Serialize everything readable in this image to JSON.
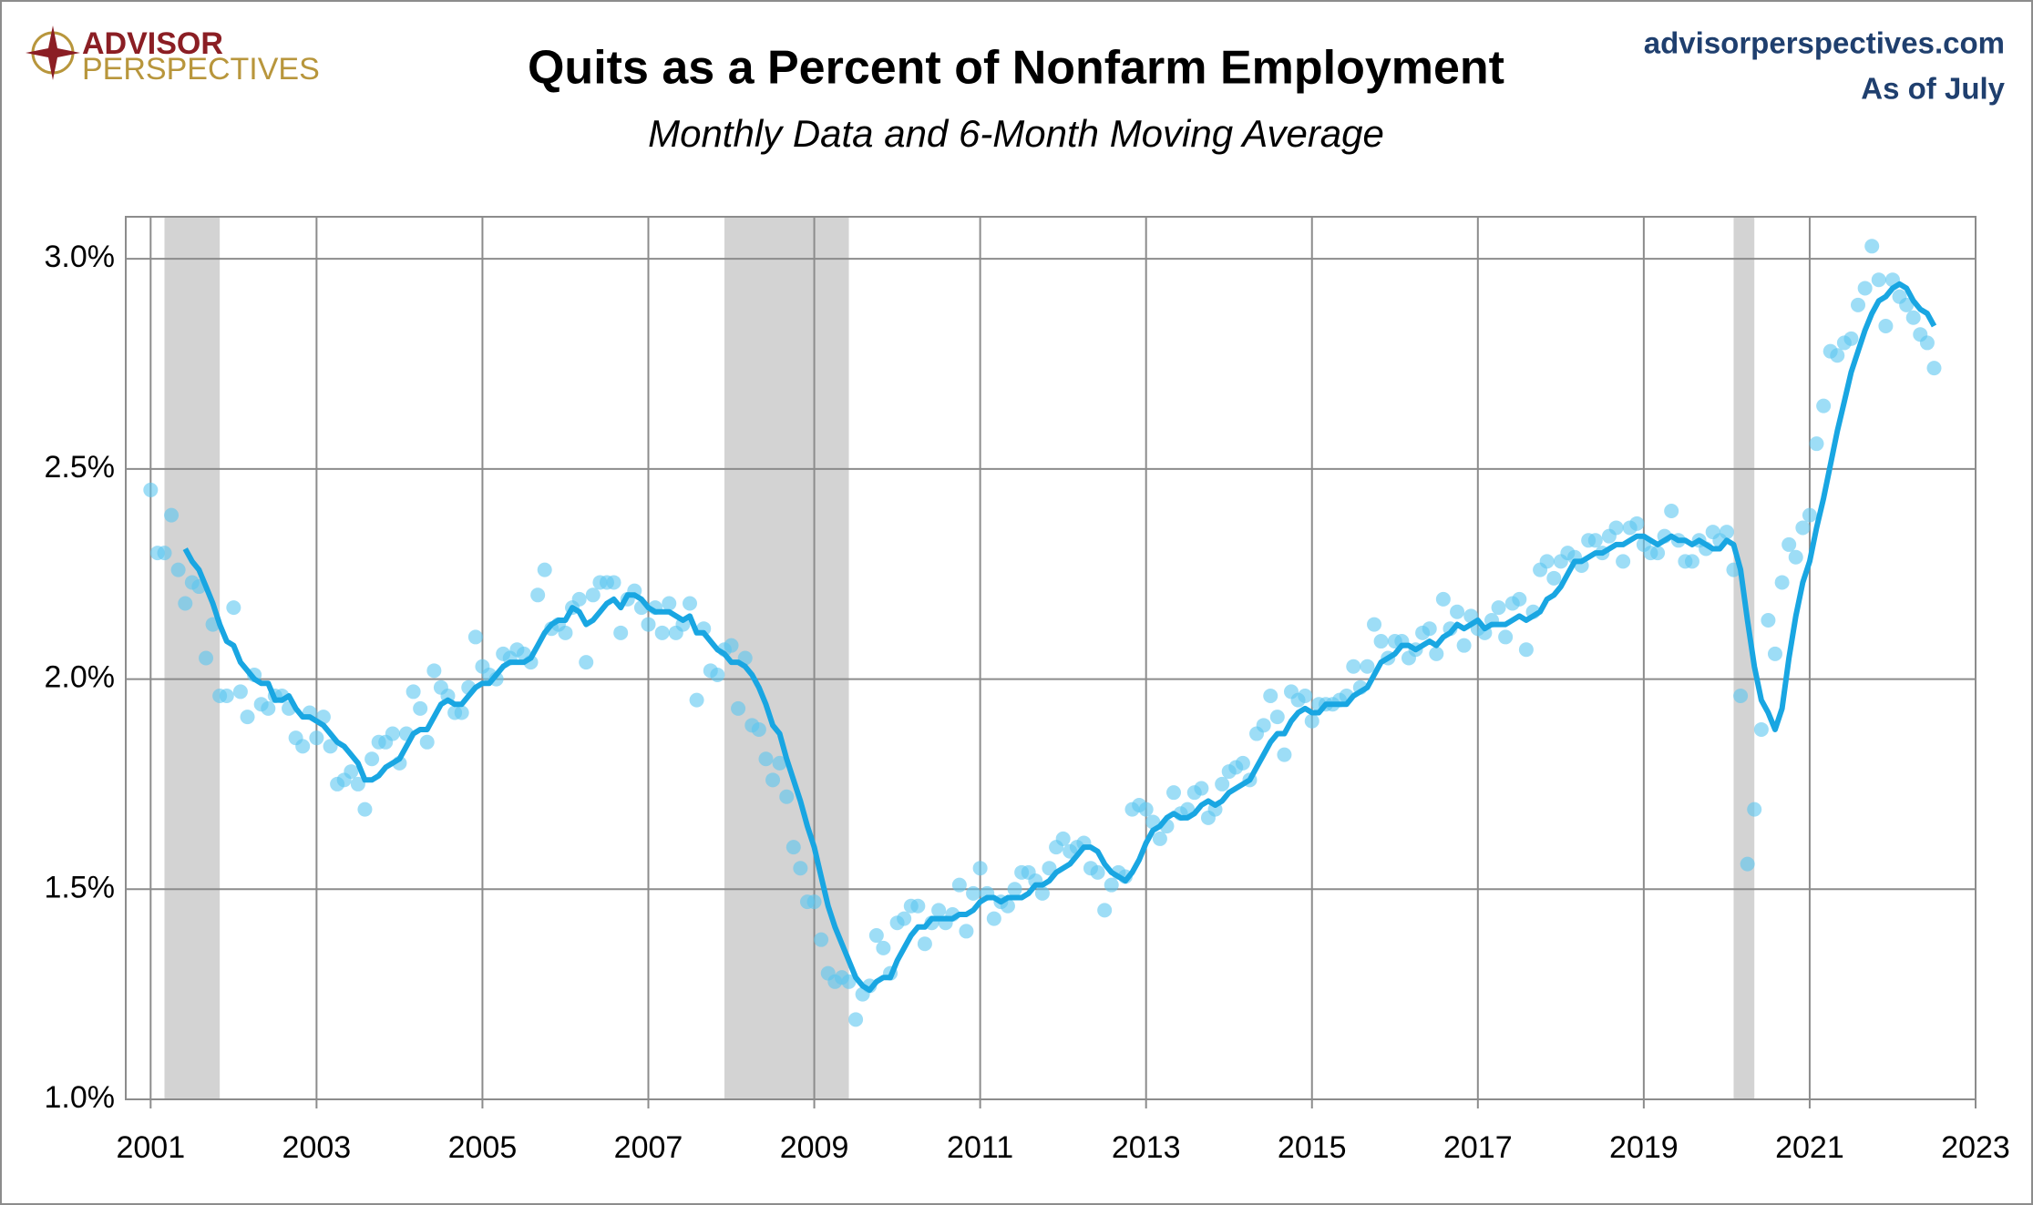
{
  "chart_data": {
    "type": "scatter",
    "title": "Quits as a Percent of Nonfarm Employment",
    "subtitle": "Monthly Data and 6-Month Moving Average",
    "logo_top": "ADVISOR",
    "logo_bottom": "PERSPECTIVES",
    "source": "advisorperspectives.com",
    "as_of": "As of July",
    "x": [
      2001,
      2001.083,
      2001.167,
      2001.25,
      2001.333,
      2001.417,
      2001.5,
      2001.583,
      2001.667,
      2001.75,
      2001.833,
      2001.917,
      2002,
      2002.083,
      2002.167,
      2002.25,
      2002.333,
      2002.417,
      2002.5,
      2002.583,
      2002.667,
      2002.75,
      2002.833,
      2002.917,
      2003,
      2003.083,
      2003.167,
      2003.25,
      2003.333,
      2003.417,
      2003.5,
      2003.583,
      2003.667,
      2003.75,
      2003.833,
      2003.917,
      2004,
      2004.083,
      2004.167,
      2004.25,
      2004.333,
      2004.417,
      2004.5,
      2004.583,
      2004.667,
      2004.75,
      2004.833,
      2004.917,
      2005,
      2005.083,
      2005.167,
      2005.25,
      2005.333,
      2005.417,
      2005.5,
      2005.583,
      2005.667,
      2005.75,
      2005.833,
      2005.917,
      2006,
      2006.083,
      2006.167,
      2006.25,
      2006.333,
      2006.417,
      2006.5,
      2006.583,
      2006.667,
      2006.75,
      2006.833,
      2006.917,
      2007,
      2007.083,
      2007.167,
      2007.25,
      2007.333,
      2007.417,
      2007.5,
      2007.583,
      2007.667,
      2007.75,
      2007.833,
      2007.917,
      2008,
      2008.083,
      2008.167,
      2008.25,
      2008.333,
      2008.417,
      2008.5,
      2008.583,
      2008.667,
      2008.75,
      2008.833,
      2008.917,
      2009,
      2009.083,
      2009.167,
      2009.25,
      2009.333,
      2009.417,
      2009.5,
      2009.583,
      2009.667,
      2009.75,
      2009.833,
      2009.917,
      2010,
      2010.083,
      2010.167,
      2010.25,
      2010.333,
      2010.417,
      2010.5,
      2010.583,
      2010.667,
      2010.75,
      2010.833,
      2010.917,
      2011,
      2011.083,
      2011.167,
      2011.25,
      2011.333,
      2011.417,
      2011.5,
      2011.583,
      2011.667,
      2011.75,
      2011.833,
      2011.917,
      2012,
      2012.083,
      2012.167,
      2012.25,
      2012.333,
      2012.417,
      2012.5,
      2012.583,
      2012.667,
      2012.75,
      2012.833,
      2012.917,
      2013,
      2013.083,
      2013.167,
      2013.25,
      2013.333,
      2013.417,
      2013.5,
      2013.583,
      2013.667,
      2013.75,
      2013.833,
      2013.917,
      2014,
      2014.083,
      2014.167,
      2014.25,
      2014.333,
      2014.417,
      2014.5,
      2014.583,
      2014.667,
      2014.75,
      2014.833,
      2014.917,
      2015,
      2015.083,
      2015.167,
      2015.25,
      2015.333,
      2015.417,
      2015.5,
      2015.583,
      2015.667,
      2015.75,
      2015.833,
      2015.917,
      2016,
      2016.083,
      2016.167,
      2016.25,
      2016.333,
      2016.417,
      2016.5,
      2016.583,
      2016.667,
      2016.75,
      2016.833,
      2016.917,
      2017,
      2017.083,
      2017.167,
      2017.25,
      2017.333,
      2017.417,
      2017.5,
      2017.583,
      2017.667,
      2017.75,
      2017.833,
      2017.917,
      2018,
      2018.083,
      2018.167,
      2018.25,
      2018.333,
      2018.417,
      2018.5,
      2018.583,
      2018.667,
      2018.75,
      2018.833,
      2018.917,
      2019,
      2019.083,
      2019.167,
      2019.25,
      2019.333,
      2019.417,
      2019.5,
      2019.583,
      2019.667,
      2019.75,
      2019.833,
      2019.917,
      2020,
      2020.083,
      2020.167,
      2020.25,
      2020.333,
      2020.417,
      2020.5,
      2020.583,
      2020.667,
      2020.75,
      2020.833,
      2020.917,
      2021,
      2021.083,
      2021.167,
      2021.25,
      2021.333,
      2021.417,
      2021.5,
      2021.583,
      2021.667,
      2021.75,
      2021.833,
      2021.917,
      2022,
      2022.083,
      2022.167,
      2022.25,
      2022.333,
      2022.417,
      2022.5
    ],
    "series": [
      {
        "type": "scatter",
        "color": "#5cc6f0",
        "values": [
          2.45,
          2.3,
          2.3,
          2.39,
          2.26,
          2.18,
          2.23,
          2.22,
          2.05,
          2.13,
          1.96,
          1.96,
          2.17,
          1.97,
          1.91,
          2.01,
          1.94,
          1.93,
          1.96,
          1.96,
          1.93,
          1.86,
          1.84,
          1.92,
          1.86,
          1.91,
          1.84,
          1.75,
          1.76,
          1.78,
          1.75,
          1.69,
          1.81,
          1.85,
          1.85,
          1.87,
          1.8,
          1.87,
          1.97,
          1.93,
          1.85,
          2.02,
          1.98,
          1.96,
          1.92,
          1.92,
          1.98,
          2.1,
          2.03,
          2.01,
          2.0,
          2.06,
          2.05,
          2.07,
          2.06,
          2.04,
          2.2,
          2.26,
          2.12,
          2.13,
          2.11,
          2.17,
          2.19,
          2.04,
          2.2,
          2.23,
          2.23,
          2.23,
          2.11,
          2.19,
          2.21,
          2.17,
          2.13,
          2.17,
          2.11,
          2.18,
          2.11,
          2.13,
          2.18,
          1.95,
          2.12,
          2.02,
          2.01,
          2.07,
          2.08,
          1.93,
          2.05,
          1.89,
          1.88,
          1.81,
          1.76,
          1.8,
          1.72,
          1.6,
          1.55,
          1.47,
          1.47,
          1.38,
          1.3,
          1.28,
          1.29,
          1.28,
          1.19,
          1.25,
          1.27,
          1.39,
          1.36,
          1.3,
          1.42,
          1.43,
          1.46,
          1.46,
          1.37,
          1.42,
          1.45,
          1.42,
          1.44,
          1.51,
          1.4,
          1.49,
          1.55,
          1.49,
          1.43,
          1.47,
          1.46,
          1.5,
          1.54,
          1.54,
          1.52,
          1.49,
          1.55,
          1.6,
          1.62,
          1.59,
          1.6,
          1.61,
          1.55,
          1.54,
          1.45,
          1.51,
          1.54,
          1.53,
          1.69,
          1.7,
          1.69,
          1.66,
          1.62,
          1.65,
          1.73,
          1.68,
          1.69,
          1.73,
          1.74,
          1.67,
          1.69,
          1.75,
          1.78,
          1.79,
          1.8,
          1.76,
          1.87,
          1.89,
          1.96,
          1.91,
          1.82,
          1.97,
          1.95,
          1.96,
          1.9,
          1.94,
          1.94,
          1.94,
          1.95,
          1.96,
          2.03,
          1.98,
          2.03,
          2.13,
          2.09,
          2.05,
          2.09,
          2.09,
          2.05,
          2.07,
          2.11,
          2.12,
          2.06,
          2.19,
          2.12,
          2.16,
          2.08,
          2.15,
          2.12,
          2.11,
          2.14,
          2.17,
          2.1,
          2.18,
          2.19,
          2.07,
          2.16,
          2.26,
          2.28,
          2.24,
          2.28,
          2.3,
          2.29,
          2.27,
          2.33,
          2.33,
          2.3,
          2.34,
          2.36,
          2.28,
          2.36,
          2.37,
          2.32,
          2.3,
          2.3,
          2.34,
          2.4,
          2.33,
          2.28,
          2.28,
          2.33,
          2.31,
          2.35,
          2.33,
          2.35,
          2.26,
          1.96,
          1.56,
          1.69,
          1.88,
          2.14,
          2.06,
          2.23,
          2.32,
          2.29,
          2.36,
          2.39,
          2.56,
          2.65,
          2.78,
          2.77,
          2.8,
          2.81,
          2.89,
          2.93,
          3.03,
          2.95,
          2.84,
          2.95,
          2.91,
          2.89,
          2.86,
          2.82,
          2.8,
          2.74
        ]
      },
      {
        "type": "line",
        "color": "#19a6e2",
        "values": [
          null,
          null,
          null,
          null,
          null,
          2.31,
          2.28,
          2.26,
          2.22,
          2.18,
          2.13,
          2.09,
          2.08,
          2.04,
          2.02,
          2.0,
          1.99,
          1.99,
          1.95,
          1.95,
          1.96,
          1.93,
          1.91,
          1.91,
          1.9,
          1.89,
          1.87,
          1.85,
          1.84,
          1.82,
          1.8,
          1.76,
          1.76,
          1.77,
          1.79,
          1.8,
          1.81,
          1.84,
          1.87,
          1.88,
          1.88,
          1.91,
          1.94,
          1.95,
          1.94,
          1.94,
          1.96,
          1.98,
          1.99,
          1.99,
          2.01,
          2.03,
          2.04,
          2.04,
          2.04,
          2.05,
          2.08,
          2.11,
          2.13,
          2.14,
          2.14,
          2.17,
          2.16,
          2.13,
          2.14,
          2.16,
          2.18,
          2.19,
          2.17,
          2.2,
          2.2,
          2.19,
          2.17,
          2.16,
          2.16,
          2.16,
          2.15,
          2.14,
          2.15,
          2.11,
          2.11,
          2.09,
          2.07,
          2.06,
          2.04,
          2.04,
          2.03,
          2.01,
          1.98,
          1.94,
          1.89,
          1.87,
          1.81,
          1.76,
          1.71,
          1.65,
          1.6,
          1.53,
          1.46,
          1.41,
          1.37,
          1.33,
          1.29,
          1.27,
          1.26,
          1.28,
          1.29,
          1.29,
          1.33,
          1.36,
          1.39,
          1.41,
          1.41,
          1.43,
          1.43,
          1.43,
          1.43,
          1.44,
          1.44,
          1.45,
          1.47,
          1.48,
          1.48,
          1.47,
          1.48,
          1.48,
          1.48,
          1.49,
          1.51,
          1.51,
          1.52,
          1.54,
          1.55,
          1.56,
          1.58,
          1.6,
          1.6,
          1.59,
          1.56,
          1.54,
          1.53,
          1.52,
          1.54,
          1.57,
          1.61,
          1.64,
          1.65,
          1.67,
          1.68,
          1.67,
          1.67,
          1.68,
          1.7,
          1.71,
          1.7,
          1.71,
          1.73,
          1.74,
          1.75,
          1.76,
          1.79,
          1.82,
          1.85,
          1.87,
          1.87,
          1.9,
          1.92,
          1.93,
          1.92,
          1.92,
          1.94,
          1.94,
          1.94,
          1.94,
          1.96,
          1.97,
          1.98,
          2.01,
          2.04,
          2.05,
          2.06,
          2.08,
          2.08,
          2.07,
          2.08,
          2.09,
          2.08,
          2.1,
          2.11,
          2.13,
          2.12,
          2.13,
          2.14,
          2.12,
          2.13,
          2.13,
          2.13,
          2.14,
          2.15,
          2.14,
          2.15,
          2.16,
          2.19,
          2.2,
          2.22,
          2.25,
          2.28,
          2.28,
          2.29,
          2.3,
          2.3,
          2.31,
          2.32,
          2.32,
          2.33,
          2.34,
          2.34,
          2.33,
          2.32,
          2.33,
          2.34,
          2.33,
          2.33,
          2.32,
          2.33,
          2.32,
          2.31,
          2.31,
          2.33,
          2.32,
          2.26,
          2.14,
          2.03,
          1.95,
          1.92,
          1.88,
          1.93,
          2.05,
          2.15,
          2.23,
          2.28,
          2.36,
          2.43,
          2.51,
          2.59,
          2.66,
          2.73,
          2.78,
          2.83,
          2.87,
          2.9,
          2.91,
          2.93,
          2.94,
          2.93,
          2.9,
          2.88,
          2.87,
          2.84
        ]
      }
    ],
    "recessions": [
      [
        2001.167,
        2001.833
      ],
      [
        2007.917,
        2009.417
      ],
      [
        2020.083,
        2020.333
      ]
    ],
    "recession_color": "#d3d3d3",
    "xlim": [
      2000.7,
      2023
    ],
    "xticks": [
      2001,
      2003,
      2005,
      2007,
      2009,
      2011,
      2013,
      2015,
      2017,
      2019,
      2021,
      2023
    ],
    "ylim": [
      1,
      3.1
    ],
    "yticks": [
      {
        "value": 1,
        "label": "1.0%"
      },
      {
        "value": 1.5,
        "label": "1.5%"
      },
      {
        "value": 2,
        "label": "2.0%"
      },
      {
        "value": 2.5,
        "label": "2.5%"
      },
      {
        "value": 3,
        "label": "3.0%"
      }
    ],
    "grid": true
  }
}
